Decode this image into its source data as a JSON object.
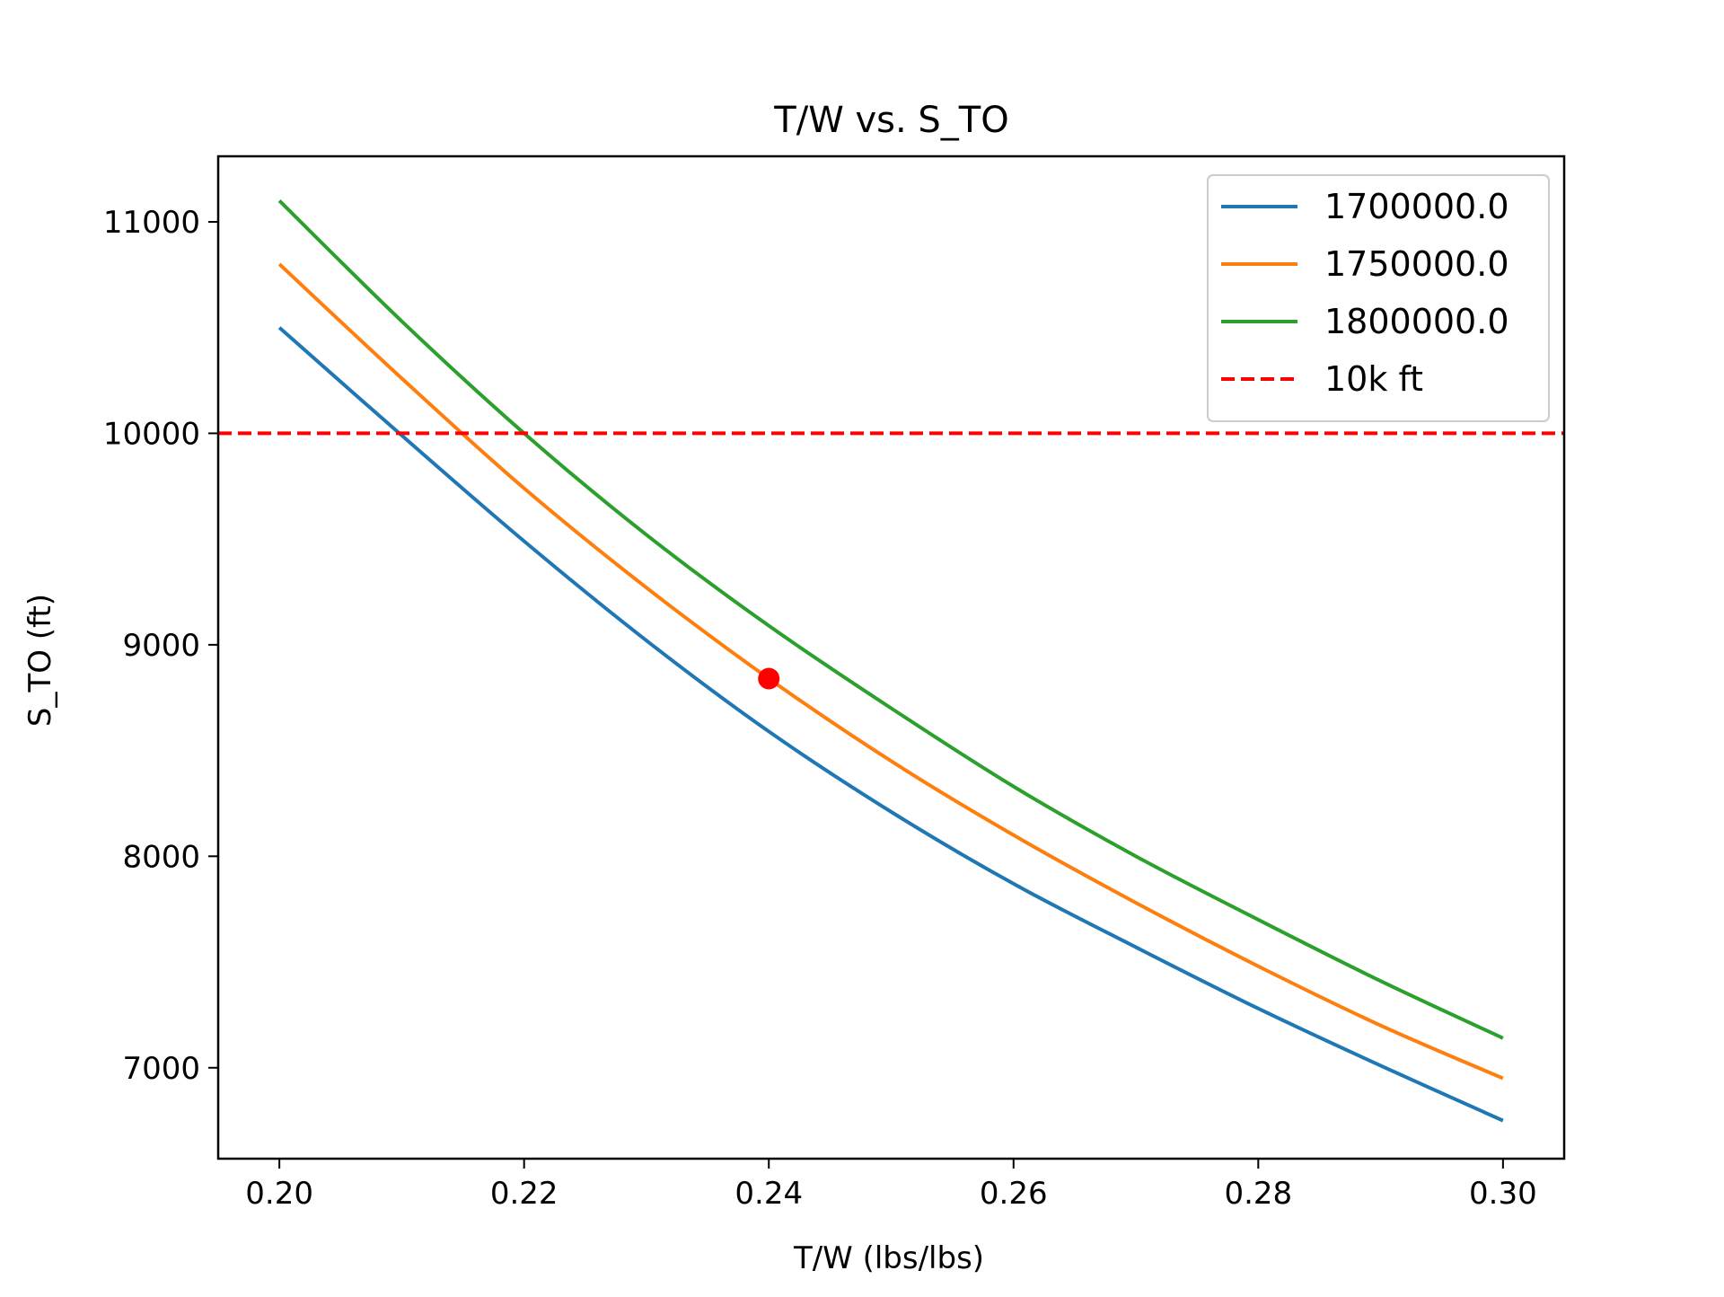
{
  "chart_data": {
    "type": "line",
    "title": "T/W vs. S_TO",
    "xlabel": "T/W (lbs/lbs)",
    "ylabel": "S_TO (ft)",
    "xlim": [
      0.195,
      0.305
    ],
    "ylim": [
      6570,
      11310
    ],
    "x_ticks": [
      0.2,
      0.22,
      0.24,
      0.26,
      0.28,
      0.3
    ],
    "x_tick_labels": [
      "0.20",
      "0.22",
      "0.24",
      "0.26",
      "0.28",
      "0.30"
    ],
    "y_ticks": [
      7000,
      8000,
      9000,
      10000,
      11000
    ],
    "y_tick_labels": [
      "7000",
      "8000",
      "9000",
      "10000",
      "11000"
    ],
    "grid": false,
    "legend_position": "top-right",
    "x": [
      0.2,
      0.21,
      0.22,
      0.23,
      0.24,
      0.25,
      0.26,
      0.27,
      0.28,
      0.29,
      0.3
    ],
    "series": [
      {
        "name": "1700000.0",
        "color": "#1f77b4",
        "line_style": "solid",
        "values": [
          10500,
          9990,
          9490,
          9020,
          8590,
          8210,
          7870,
          7570,
          7280,
          7010,
          6750
        ]
      },
      {
        "name": "1750000.0",
        "color": "#ff7f0e",
        "line_style": "solid",
        "values": [
          10800,
          10260,
          9740,
          9270,
          8840,
          8450,
          8100,
          7780,
          7480,
          7200,
          6950
        ]
      },
      {
        "name": "1800000.0",
        "color": "#2ca02c",
        "line_style": "solid",
        "values": [
          11100,
          10530,
          10000,
          9520,
          9090,
          8700,
          8330,
          8000,
          7700,
          7410,
          7140
        ]
      }
    ],
    "reference_lines": [
      {
        "name": "10k ft",
        "color": "#ff0000",
        "line_style": "dashed",
        "y": 10000
      }
    ],
    "markers": [
      {
        "x": 0.24,
        "y": 8840,
        "color": "#ff0000"
      }
    ]
  }
}
